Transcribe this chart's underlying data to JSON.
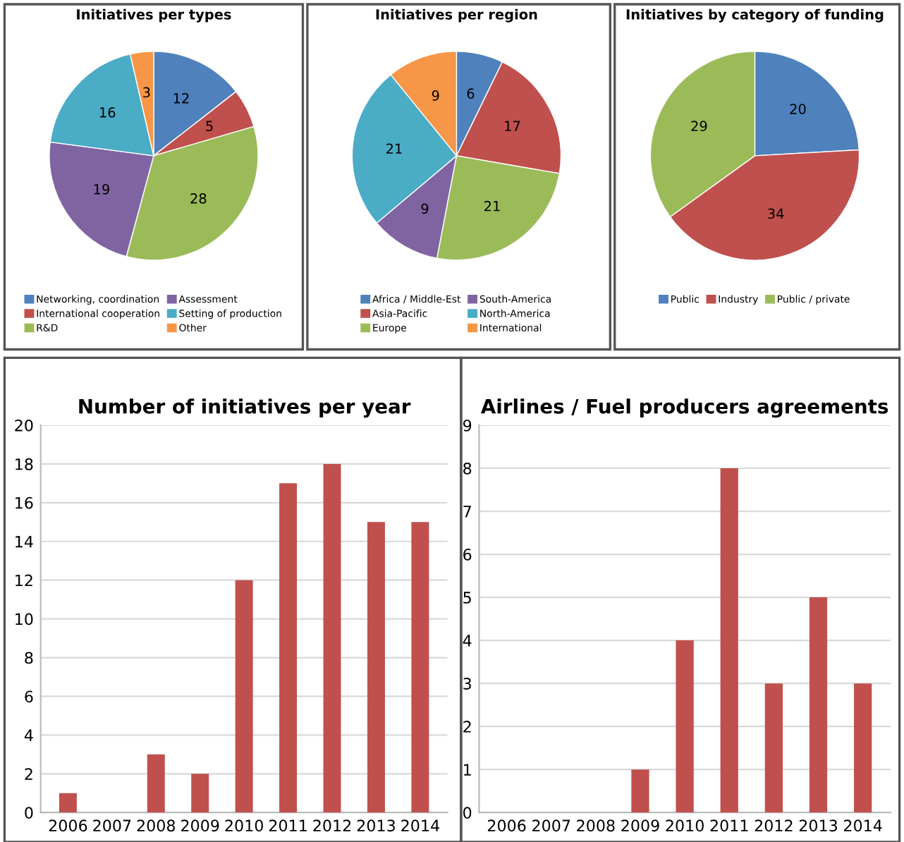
{
  "chart_data": [
    {
      "type": "pie",
      "title": "Initiatives per types",
      "categories": [
        "Networking, coordination",
        "International cooperation",
        "R&D",
        "Assessment",
        "Setting of production",
        "Other"
      ],
      "values": [
        12,
        5,
        28,
        19,
        16,
        3
      ],
      "colors": [
        "#4f81bd",
        "#c0504d",
        "#9bbb59",
        "#8064a2",
        "#4bacc6",
        "#f79646"
      ],
      "data_labels": true,
      "legend": "bottom"
    },
    {
      "type": "pie",
      "title": "Initiatives per region",
      "categories": [
        "Africa / Middle-Est",
        "Asia-Pacific",
        "Europe",
        "South-America",
        "North-America",
        "International"
      ],
      "values": [
        6,
        17,
        21,
        9,
        21,
        9
      ],
      "colors": [
        "#4f81bd",
        "#c0504d",
        "#9bbb59",
        "#8064a2",
        "#4bacc6",
        "#f79646"
      ],
      "data_labels": true,
      "legend": "bottom"
    },
    {
      "type": "pie",
      "title": "Initiatives by category of funding",
      "categories": [
        "Public",
        "Industry",
        "Public / private"
      ],
      "values": [
        20,
        34,
        29
      ],
      "colors": [
        "#4f81bd",
        "#c0504d",
        "#9bbb59"
      ],
      "data_labels": true,
      "legend": "bottom"
    },
    {
      "type": "bar",
      "title": "Number of initiatives per year",
      "categories": [
        "2006",
        "2007",
        "2008",
        "2009",
        "2010",
        "2011",
        "2012",
        "2013",
        "2014"
      ],
      "values": [
        1,
        0,
        3,
        2,
        12,
        17,
        18,
        15,
        15
      ],
      "color": "#c0504d",
      "ylim": [
        0,
        20
      ],
      "yticks": [
        0,
        2,
        4,
        6,
        8,
        10,
        12,
        14,
        16,
        18,
        20
      ],
      "grid": "y"
    },
    {
      "type": "bar",
      "title": "Airlines / Fuel producers agreements",
      "categories": [
        "2006",
        "2007",
        "2008",
        "2009",
        "2010",
        "2011",
        "2012",
        "2013",
        "2014"
      ],
      "values": [
        0,
        0,
        0,
        1,
        4,
        8,
        3,
        5,
        3
      ],
      "color": "#c0504d",
      "ylim": [
        0,
        9
      ],
      "yticks": [
        0,
        1,
        2,
        3,
        4,
        5,
        6,
        7,
        8,
        9
      ],
      "grid": "y"
    }
  ]
}
